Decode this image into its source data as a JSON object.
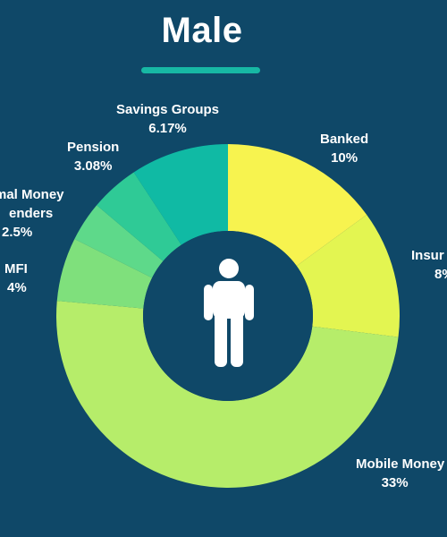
{
  "title": "Male",
  "colors": {
    "background": "#0f4868",
    "accent": "#17b8a4",
    "hole": "#0f4868",
    "icon": "#ffffff"
  },
  "center_icon": "person-icon",
  "chart_data": {
    "type": "pie",
    "style": "donut",
    "title": "Male",
    "start_angle_deg": 0,
    "direction": "clockwise",
    "slices": [
      {
        "label": "Banked",
        "value_text": "10%",
        "value": 10,
        "color": "#f7f34f"
      },
      {
        "label": "Insur",
        "value_text": "8%",
        "value": 8,
        "color": "#e3f551"
      },
      {
        "label": "Mobile Money",
        "value_text": "33%",
        "value": 33,
        "color": "#b6ed6a"
      },
      {
        "label": "MFI",
        "value_text": "4%",
        "value": 4,
        "color": "#7fe07c"
      },
      {
        "label": "mal Money\nenders",
        "value_text": "2.5%",
        "value": 2.5,
        "color": "#5ed98a"
      },
      {
        "label": "Pension",
        "value_text": "3.08%",
        "value": 3.08,
        "color": "#2fca96"
      },
      {
        "label": "Savings Groups",
        "value_text": "6.17%",
        "value": 6.17,
        "color": "#10baa4"
      }
    ]
  }
}
